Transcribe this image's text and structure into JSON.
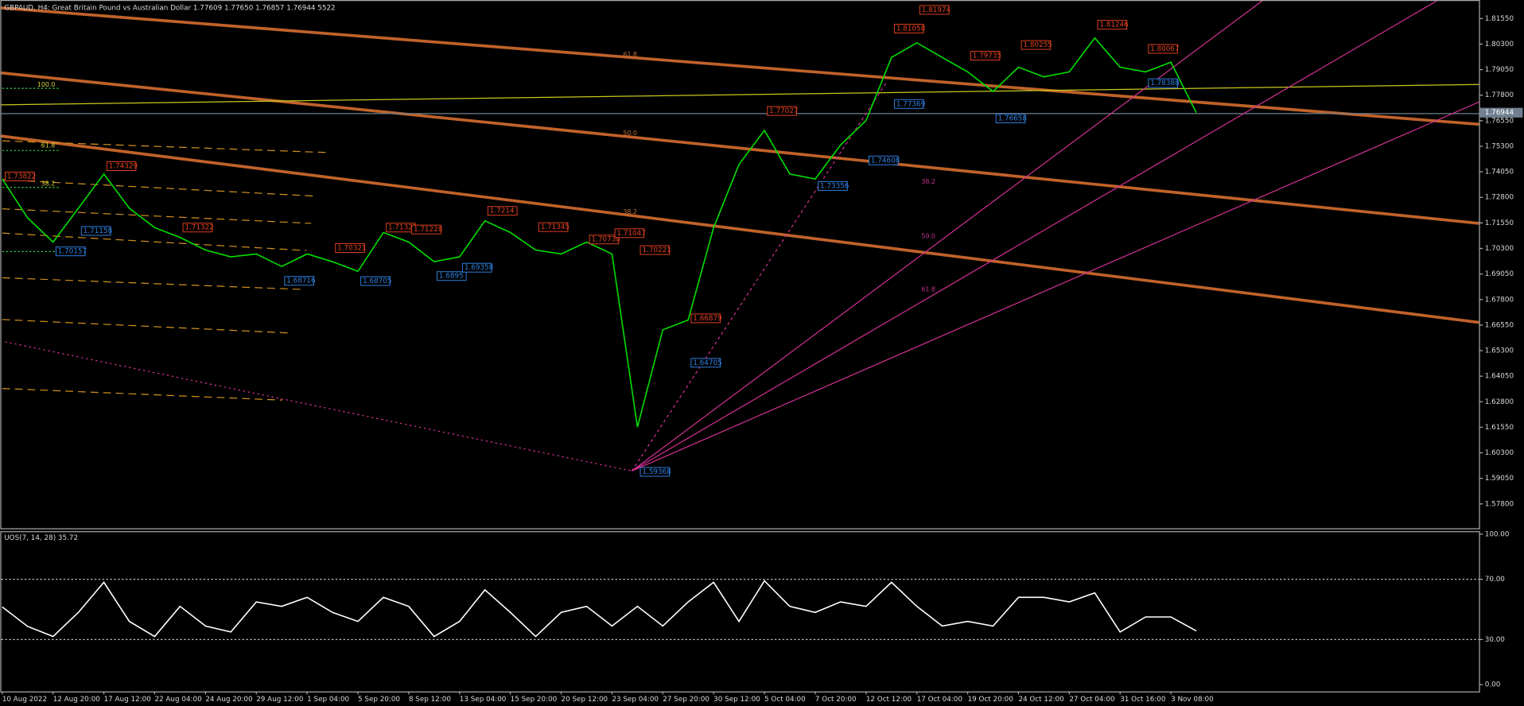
{
  "chart_data": [
    {
      "type": "line",
      "title": "GBPAUD, H4:  Great Britain Pound vs Australian Dollar  1.77609 1.77650 1.76857 1.76944  5522",
      "color": "#00e000",
      "categories": [
        "10 Aug 2022",
        null,
        "12 Aug 20:00",
        null,
        "17 Aug 12:00",
        null,
        "22 Aug 04:00",
        null,
        "24 Aug 20:00",
        null,
        "29 Aug 12:00",
        null,
        "1 Sep 04:00",
        null,
        "5 Sep 20:00",
        null,
        "8 Sep 12:00",
        null,
        "13 Sep 04:00",
        null,
        "15 Sep 20:00",
        null,
        "20 Sep 12:00",
        null,
        "23 Sep 04:00",
        null,
        "27 Sep 20:00",
        null,
        "30 Sep 12:00",
        null,
        "5 Oct 04:00",
        null,
        "7 Oct 20:00",
        null,
        "12 Oct 12:00",
        null,
        "17 Oct 04:00",
        null,
        "19 Oct 20:00",
        null,
        "24 Oct 12:00",
        null,
        "27 Oct 04:00",
        null,
        "31 Oct 16:00",
        null,
        "3 Nov 08:00",
        null
      ],
      "values": [
        1.737,
        1.718,
        1.7061,
        1.7227,
        1.7394,
        1.7227,
        1.7132,
        1.7084,
        1.7022,
        1.6989,
        1.7003,
        1.6942,
        1.7003,
        1.6965,
        1.6918,
        1.7108,
        1.7061,
        1.6965,
        1.6989,
        1.7165,
        1.7108,
        1.7022,
        1.7003,
        1.7061,
        1.7003,
        1.6156,
        1.6632,
        1.668,
        1.7132,
        1.7441,
        1.7608,
        1.7394,
        1.737,
        1.7537,
        1.7656,
        1.7965,
        1.8036,
        1.7965,
        1.7894,
        1.7798,
        1.7917,
        1.787,
        1.7894,
        1.806,
        1.7917,
        1.7894,
        1.7941,
        1.76944
      ],
      "high_labels": [
        1.73822,
        null,
        null,
        null,
        1.74329,
        null,
        null,
        1.71322,
        null,
        null,
        null,
        null,
        null,
        1.70321,
        null,
        1.71322,
        1.71228,
        null,
        null,
        1.7214,
        null,
        1.71345,
        null,
        1.70738,
        1.71047,
        1.70221,
        null,
        1.66879,
        null,
        null,
        1.77027,
        null,
        null,
        null,
        null,
        1.81058,
        1.81974,
        null,
        1.79735,
        null,
        1.80255,
        null,
        null,
        1.81246,
        null,
        1.80067,
        null,
        null
      ],
      "low_labels": [
        null,
        null,
        1.70157,
        1.71158,
        null,
        null,
        null,
        null,
        null,
        null,
        null,
        1.68716,
        null,
        null,
        1.68705,
        null,
        null,
        1.6895,
        1.69358,
        null,
        null,
        null,
        null,
        null,
        null,
        1.59368,
        null,
        1.64705,
        null,
        null,
        null,
        null,
        1.73356,
        null,
        1.74608,
        1.77369,
        null,
        null,
        null,
        1.76658,
        null,
        null,
        null,
        null,
        null,
        1.78388,
        null,
        null
      ],
      "ylim": [
        1.5656,
        1.8241
      ],
      "yticks": [
        {
          "value": 1.8155,
          "label": "1.81550"
        },
        {
          "value": 1.803,
          "label": "1.80300"
        },
        {
          "value": 1.7905,
          "label": "1.79050"
        },
        {
          "value": 1.778,
          "label": "1.77800"
        },
        {
          "value": 1.7655,
          "label": "1.76550"
        },
        {
          "value": 1.753,
          "label": "1.75300"
        },
        {
          "value": 1.7405,
          "label": "1.74050"
        },
        {
          "value": 1.728,
          "label": "1.72800"
        },
        {
          "value": 1.7155,
          "label": "1.71550"
        },
        {
          "value": 1.703,
          "label": "1.70300"
        },
        {
          "value": 1.6905,
          "label": "1.69050"
        },
        {
          "value": 1.678,
          "label": "1.67800"
        },
        {
          "value": 1.6655,
          "label": "1.66550"
        },
        {
          "value": 1.653,
          "label": "1.65300"
        },
        {
          "value": 1.6405,
          "label": "1.64050"
        },
        {
          "value": 1.628,
          "label": "1.62800"
        },
        {
          "value": 1.6155,
          "label": "1.61550"
        },
        {
          "value": 1.603,
          "label": "1.60300"
        },
        {
          "value": 1.5905,
          "label": "1.59050"
        },
        {
          "value": 1.578,
          "label": "1.57800"
        }
      ],
      "fib_labels": [
        "61.8",
        "50.0",
        "38.2",
        "38.2",
        "50.0",
        "61.8",
        "100.0",
        "61.8",
        "38.2"
      ]
    },
    {
      "type": "line",
      "title": "UOS(7, 14, 28) 35.72",
      "color": "#ffffff",
      "values": [
        51.6,
        38.7,
        32,
        48,
        68,
        42,
        32,
        52,
        39,
        35,
        55,
        52,
        58,
        48,
        42,
        58,
        52,
        32,
        42,
        63,
        48,
        32,
        48,
        52,
        39,
        52,
        39,
        55,
        68,
        42,
        69,
        52,
        48,
        55,
        52,
        68,
        52,
        39,
        42,
        39,
        58,
        58,
        55,
        61,
        35,
        45,
        45,
        35.72
      ],
      "ylim": [
        -4.5,
        101.3
      ],
      "yticks": [
        {
          "value": 100,
          "label": "100.00"
        },
        {
          "value": 70,
          "label": "70.00"
        },
        {
          "value": 30,
          "label": "30.00"
        },
        {
          "value": 0,
          "label": "0.00"
        }
      ]
    }
  ]
}
